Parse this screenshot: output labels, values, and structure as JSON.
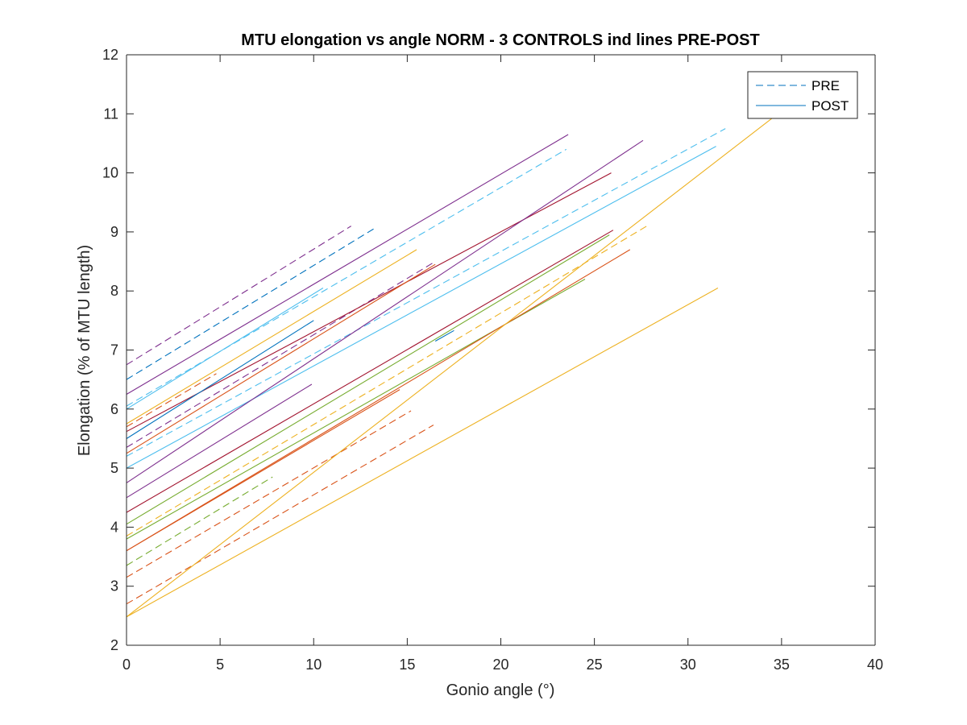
{
  "chart_data": {
    "type": "line",
    "title": "MTU elongation vs angle NORM - 3 CONTROLS ind lines PRE-POST",
    "xlabel": "Gonio angle (°)",
    "ylabel": "Elongation (% of MTU length)",
    "xlim": [
      0,
      40
    ],
    "ylim": [
      2,
      12
    ],
    "xticks": [
      0,
      5,
      10,
      15,
      20,
      25,
      30,
      35,
      40
    ],
    "yticks": [
      2,
      3,
      4,
      5,
      6,
      7,
      8,
      9,
      10,
      11,
      12
    ],
    "grid": false,
    "legend": {
      "location": "top-right",
      "entries": [
        {
          "label": "PRE",
          "style": "dashed",
          "color": "#0072BD"
        },
        {
          "label": "POST",
          "style": "solid",
          "color": "#0072BD"
        }
      ]
    },
    "series": [
      {
        "group": "PRE",
        "style": "dashed",
        "color": "#7E2F8E",
        "x": [
          0,
          12.0
        ],
        "y": [
          6.75,
          9.1
        ]
      },
      {
        "group": "PRE",
        "style": "dashed",
        "color": "#0072BD",
        "x": [
          0,
          13.2
        ],
        "y": [
          6.5,
          9.05
        ]
      },
      {
        "group": "PRE",
        "style": "dashed",
        "color": "#4DBEEE",
        "x": [
          0,
          23.5
        ],
        "y": [
          6.05,
          10.4
        ]
      },
      {
        "group": "PRE",
        "style": "dashed",
        "color": "#4DBEEE",
        "x": [
          0,
          32.0
        ],
        "y": [
          5.2,
          10.75
        ]
      },
      {
        "group": "PRE",
        "style": "dashed",
        "color": "#D95319",
        "x": [
          0,
          4.8
        ],
        "y": [
          5.7,
          6.6
        ]
      },
      {
        "group": "PRE",
        "style": "dashed",
        "color": "#7E2F8E",
        "x": [
          0,
          16.5
        ],
        "y": [
          5.35,
          8.5
        ]
      },
      {
        "group": "PRE",
        "style": "dashed",
        "color": "#EDB120",
        "x": [
          0,
          27.8
        ],
        "y": [
          3.85,
          9.1
        ]
      },
      {
        "group": "PRE",
        "style": "dashed",
        "color": "#77AC30",
        "x": [
          0,
          7.8
        ],
        "y": [
          3.35,
          4.85
        ]
      },
      {
        "group": "PRE",
        "style": "dashed",
        "color": "#D95319",
        "x": [
          0,
          15.2
        ],
        "y": [
          3.15,
          5.97
        ]
      },
      {
        "group": "PRE",
        "style": "dashed",
        "color": "#D95319",
        "x": [
          0,
          16.4
        ],
        "y": [
          2.7,
          5.73
        ]
      },
      {
        "group": "POST",
        "style": "solid",
        "color": "#7E2F8E",
        "x": [
          0,
          23.6
        ],
        "y": [
          6.25,
          10.65
        ]
      },
      {
        "group": "POST",
        "style": "solid",
        "color": "#4DBEEE",
        "x": [
          0,
          10.5
        ],
        "y": [
          6.0,
          8.05
        ]
      },
      {
        "group": "POST",
        "style": "solid",
        "color": "#EDB120",
        "x": [
          0,
          15.5
        ],
        "y": [
          5.75,
          8.7
        ]
      },
      {
        "group": "POST",
        "style": "solid",
        "color": "#A2142F",
        "x": [
          0,
          25.9
        ],
        "y": [
          5.62,
          10.0
        ]
      },
      {
        "group": "POST",
        "style": "solid",
        "color": "#0072BD",
        "x": [
          0,
          10.0
        ],
        "y": [
          5.5,
          7.5
        ]
      },
      {
        "group": "POST",
        "style": "solid",
        "color": "#D95319",
        "x": [
          0,
          16.5
        ],
        "y": [
          5.25,
          8.45
        ]
      },
      {
        "group": "POST",
        "style": "solid",
        "color": "#4DBEEE",
        "x": [
          0,
          31.5
        ],
        "y": [
          5.0,
          10.45
        ]
      },
      {
        "group": "POST",
        "style": "solid",
        "color": "#7E2F8E",
        "x": [
          0,
          27.6
        ],
        "y": [
          4.75,
          10.55
        ]
      },
      {
        "group": "POST",
        "style": "solid",
        "color": "#7E2F8E",
        "x": [
          0,
          9.9
        ],
        "y": [
          4.5,
          6.42
        ]
      },
      {
        "group": "POST",
        "style": "solid",
        "color": "#A2142F",
        "x": [
          0,
          26.0
        ],
        "y": [
          4.25,
          9.03
        ]
      },
      {
        "group": "POST",
        "style": "solid",
        "color": "#77AC30",
        "x": [
          0,
          25.8
        ],
        "y": [
          4.05,
          8.95
        ]
      },
      {
        "group": "POST",
        "style": "solid",
        "color": "#77AC30",
        "x": [
          0,
          24.5
        ],
        "y": [
          3.8,
          8.2
        ]
      },
      {
        "group": "POST",
        "style": "solid",
        "color": "#0072BD",
        "x": [
          16.5,
          17.5
        ],
        "y": [
          7.15,
          7.33
        ]
      },
      {
        "group": "POST",
        "style": "solid",
        "color": "#D95319",
        "x": [
          0,
          26.9
        ],
        "y": [
          3.6,
          8.7
        ]
      },
      {
        "group": "POST",
        "style": "solid",
        "color": "#D95319",
        "x": [
          0,
          14.6
        ],
        "y": [
          3.6,
          6.33
        ]
      },
      {
        "group": "POST",
        "style": "solid",
        "color": "#EDB120",
        "x": [
          0,
          34.8
        ],
        "y": [
          2.48,
          11.0
        ]
      },
      {
        "group": "POST",
        "style": "solid",
        "color": "#EDB120",
        "x": [
          0,
          31.6
        ],
        "y": [
          2.48,
          8.05
        ]
      }
    ]
  }
}
